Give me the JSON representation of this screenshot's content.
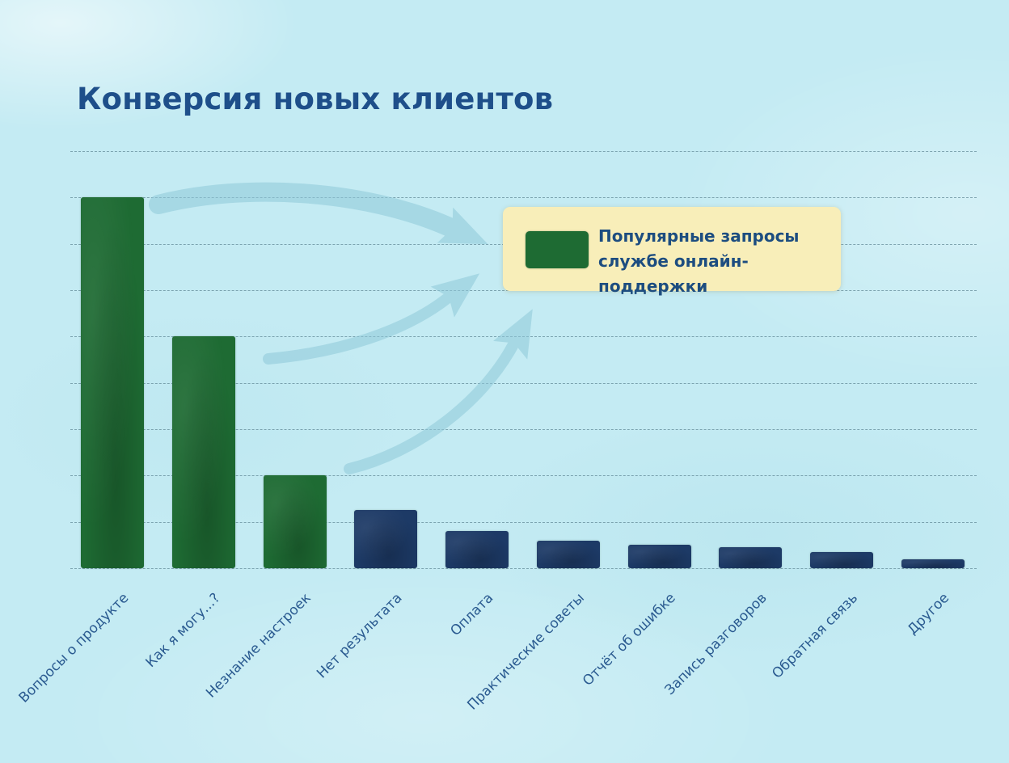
{
  "title": "Конверсия новых клиентов",
  "legend": {
    "line1": "Популярные запросы",
    "line2": "службе онлайн-поддержки"
  },
  "colors": {
    "background": "#c4ebf3",
    "grid": "#567c8a",
    "bar_green": "#1e6b33",
    "bar_navy": "#1d3a66",
    "title_text": "#1e4f8a",
    "axis_label_text": "#2a5a90",
    "legend_bg": "#f8eeb9",
    "legend_text": "#1d4d80",
    "arrow": "#8fc9d9"
  },
  "chart_data": {
    "type": "bar",
    "title": "Конверсия новых клиентов",
    "categories": [
      "Вопросы о продукте",
      "Как я могу...?",
      "Незнание настроек",
      "Нет результата",
      "Оплата",
      "Практические советы",
      "Отчёт об ошибке",
      "Запись разговоров",
      "Обратная связь",
      "Другое"
    ],
    "values": [
      80,
      50,
      20,
      12.5,
      8,
      6,
      5,
      4.5,
      3.5,
      2
    ],
    "bar_groups": [
      "popular",
      "popular",
      "popular",
      "other",
      "other",
      "other",
      "other",
      "other",
      "other",
      "other"
    ],
    "group_colors": {
      "popular": "#1e6b33",
      "other": "#1d3a66"
    },
    "xlabel": "",
    "ylabel": "",
    "ylim": [
      0,
      90
    ],
    "y_ticks": "unlabeled horizontal gridlines every 10 units (10 lines)",
    "grid": "horizontal",
    "x_label_rotation": 45,
    "legend_entries": [
      {
        "label": "Популярные запросы службе онлайн-поддержки",
        "color": "#1e6b33"
      }
    ],
    "legend_position": "upper-right",
    "annotations": "three hand-drawn watercolor arrows point from the three green bars to the legend box"
  }
}
